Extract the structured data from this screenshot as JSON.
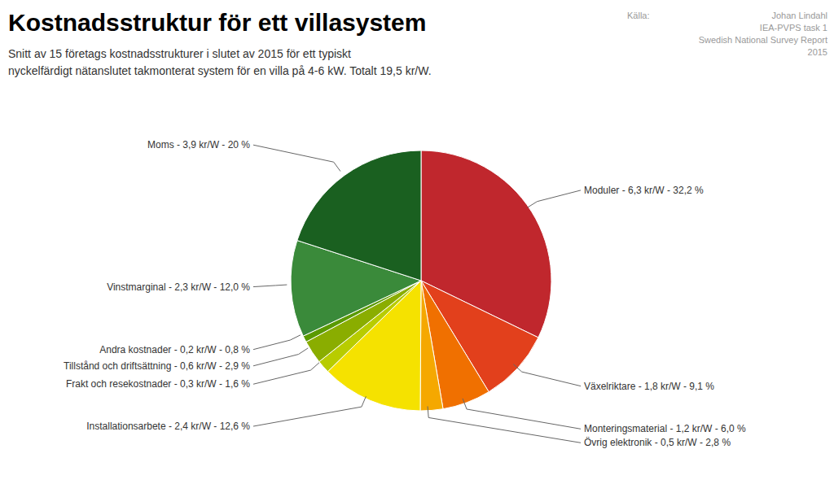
{
  "chart_data": {
    "type": "pie",
    "title": "Kostnadsstruktur för ett villasystem",
    "subtitle": "Snitt av 15 företags kostnadsstrukturer i slutet av 2015 för ett typiskt\nnyckelfärdigt nätanslutet takmonterat system för en villa på 4-6 kW. Totalt 19,5 kr/W.",
    "source_label": "Källa:",
    "source_text": "Johan Lindahl\nIEA-PVPS task 1\nSwedish National Survey Report\n2015",
    "categories": [
      "Moduler - 6,3 kr/W - 32,2 %",
      "Växelriktare - 1,8 kr/W - 9,1 %",
      "Monteringsmaterial - 1,2 kr/W - 6,0 %",
      "Övrig elektronik - 0,5 kr/W - 2,8 %",
      "Installationsarbete - 2,4 kr/W - 12,6 %",
      "Frakt och resekostnader - 0,3 kr/W - 1,6 %",
      "Tillstånd och driftsättning - 0,6 kr/W - 2,9 %",
      "Andra kostnader - 0,2 kr/W - 0,8 %",
      "Vinstmarginal - 2,3 kr/W - 12,0 %",
      "Moms - 3,9 kr/W - 20 %"
    ],
    "values": [
      32.2,
      9.1,
      6.0,
      2.8,
      12.6,
      1.6,
      2.9,
      0.8,
      12.0,
      20.0
    ],
    "colors": [
      "#c0272d",
      "#e2401c",
      "#f07000",
      "#f5a800",
      "#f5e200",
      "#b8cc00",
      "#8aad00",
      "#5a9a00",
      "#3a8a3a",
      "#1a6020"
    ]
  }
}
